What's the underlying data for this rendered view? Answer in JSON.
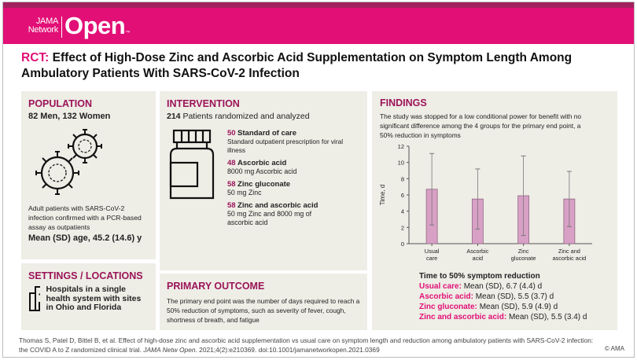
{
  "header": {
    "logo_small": "JAMA Network",
    "logo_big": "Open",
    "logo_tm": "™"
  },
  "title": {
    "prefix": "RCT:",
    "text": "Effect of High-Dose Zinc and Ascorbic Acid Supplementation on Symptom Length Among Ambulatory Patients With SARS-CoV-2 Infection"
  },
  "population": {
    "heading": "POPULATION",
    "summary": "82 Men, 132 Women",
    "description": "Adult patients with SARS-CoV-2 infection confirmed with a PCR-based assay as outpatients",
    "age": "Mean (SD) age, 45.2 (14.6) y",
    "icon": "virus-icon"
  },
  "settings": {
    "heading": "SETTINGS / LOCATIONS",
    "text": "Hospitals in a single health system with sites in Ohio and Florida",
    "icon": "hospital-icon"
  },
  "intervention": {
    "heading": "INTERVENTION",
    "total": "214",
    "total_label": "Patients randomized and analyzed",
    "icon": "pill-bottle-icon",
    "groups": [
      {
        "n": "50",
        "name": "Standard of care",
        "detail": "Standard outpatient prescription for viral illness"
      },
      {
        "n": "48",
        "name": "Ascorbic acid",
        "detail": "8000 mg Ascorbic acid"
      },
      {
        "n": "58",
        "name": "Zinc gluconate",
        "detail": "50 mg Zinc"
      },
      {
        "n": "58",
        "name": "Zinc and ascorbic acid",
        "detail": "50 mg Zinc and 8000 mg of ascorbic acid"
      }
    ]
  },
  "outcome": {
    "heading": "PRIMARY OUTCOME",
    "text": "The primary end point was the number of days required to reach a 50% reduction of symptoms, such as severity of fever, cough, shortness of  breath, and fatigue"
  },
  "findings": {
    "heading": "FINDINGS",
    "text": "The study was stopped for a low conditional power for benefit with no significant difference among the 4 groups for the primary end point, a 50% reduction in symptoms",
    "results_title": "Time to 50% symptom reduction",
    "results": [
      {
        "label": "Usual care:",
        "value": "Mean (SD), 6.7 (4.4) d"
      },
      {
        "label": "Ascorbic acid:",
        "value": "Mean (SD), 5.5 (3.7) d"
      },
      {
        "label": "Zinc gluconate:",
        "value": "Mean (SD), 5.9 (4.9) d"
      },
      {
        "label": "Zinc and ascorbic acid:",
        "value": "Mean (SD), 5.5 (3.4) d"
      }
    ]
  },
  "chart_data": {
    "type": "bar",
    "categories": [
      "Usual care",
      "Ascorbic acid",
      "Zinc gluconate",
      "Zinc and ascorbic acid"
    ],
    "category_lines": [
      [
        "Usual",
        "care"
      ],
      [
        "Ascorbic",
        "acid"
      ],
      [
        "Zinc",
        "gluconate"
      ],
      [
        "Zinc and",
        "ascorbic acid"
      ]
    ],
    "values": [
      6.7,
      5.5,
      5.9,
      5.5
    ],
    "error_low": [
      2.3,
      1.8,
      1.0,
      2.1
    ],
    "error_high": [
      11.1,
      9.2,
      10.8,
      8.9
    ],
    "ylabel": "Time, d",
    "ylim": [
      0,
      12
    ],
    "yticks": [
      0,
      2,
      4,
      6,
      8,
      10,
      12
    ],
    "bar_color": "#d9a0c6",
    "grid": false
  },
  "citation": {
    "text": "Thomas S, Patel D, Bittel B, et al. Effect of high-dose zinc and ascorbic acid supplementation vs usual care on symptom length and reduction among ambulatory patients with SARS-CoV-2 infection: the COVID A to Z randomized clinical trial. ",
    "journal": "JAMA Netw Open",
    "rest": ". 2021;4(2):e210369. doi:10.1001/jamanetworkopen.2021.0369",
    "copyright": "© AMA"
  },
  "colors": {
    "brand": "#e20f76",
    "heading": "#9b1458",
    "panel": "#eeede6"
  }
}
